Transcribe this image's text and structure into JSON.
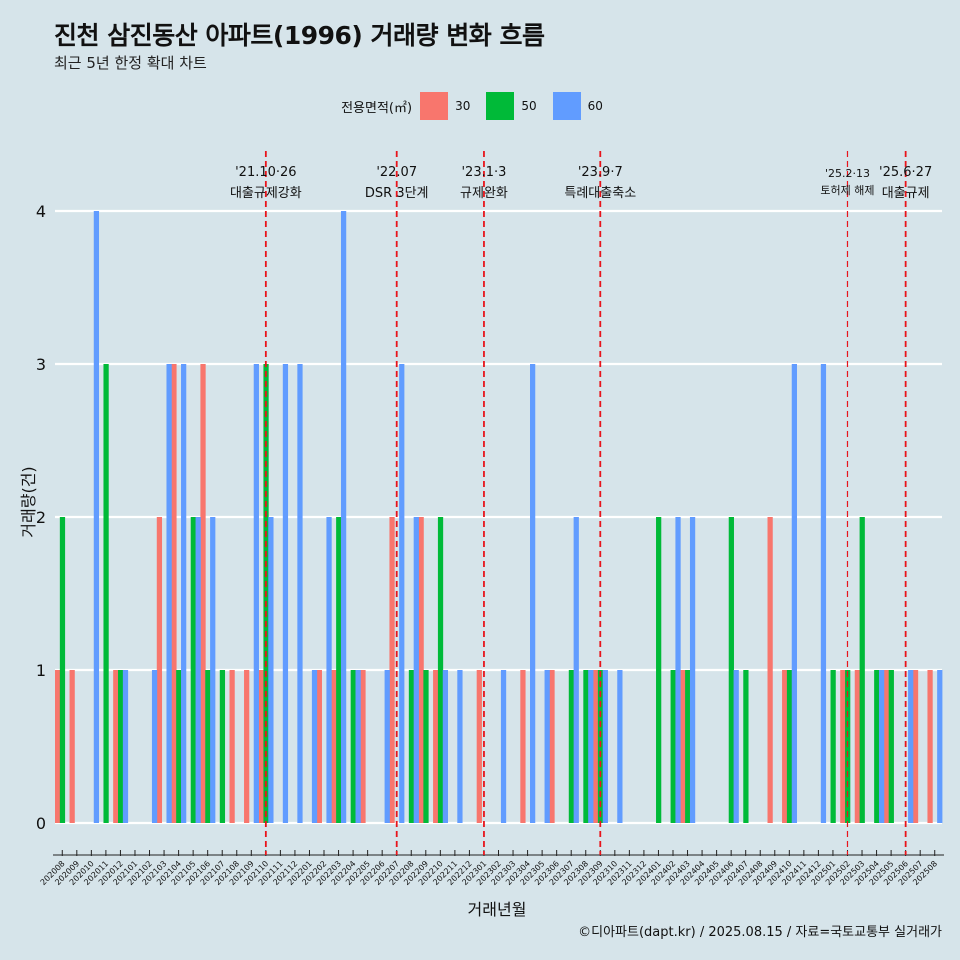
{
  "title": "진천 삼진동산 아파트(1996) 거래량 변화 흐름",
  "subtitle": "최근 5년 한정 확대 차트",
  "legend": {
    "title": "전용면적(㎡)",
    "items": [
      {
        "label": "30",
        "color": "#f8766d"
      },
      {
        "label": "50",
        "color": "#00ba38"
      },
      {
        "label": "60",
        "color": "#619cff"
      }
    ]
  },
  "caption": "©디아파트(dapt.kr) / 2025.08.15 / 자료=국토교통부 실거래가",
  "colors": {
    "background": "#d6e4ea",
    "grid": "#ffffff",
    "event_line": "#e8141b"
  },
  "chart_data": {
    "type": "bar",
    "xlabel": "거래년월",
    "ylabel": "거래량(건)",
    "ylim": [
      0,
      4
    ],
    "yticks": [
      0,
      1,
      2,
      3,
      4
    ],
    "grid": true,
    "legend_position": "top",
    "categories": [
      "202008",
      "202009",
      "202010",
      "202011",
      "202012",
      "202101",
      "202102",
      "202103",
      "202104",
      "202105",
      "202106",
      "202107",
      "202108",
      "202109",
      "202110",
      "202111",
      "202112",
      "202201",
      "202202",
      "202203",
      "202204",
      "202205",
      "202206",
      "202207",
      "202208",
      "202209",
      "202210",
      "202211",
      "202212",
      "202301",
      "202302",
      "202303",
      "202304",
      "202305",
      "202306",
      "202307",
      "202308",
      "202309",
      "202310",
      "202311",
      "202312",
      "202401",
      "202402",
      "202403",
      "202404",
      "202405",
      "202406",
      "202407",
      "202408",
      "202409",
      "202410",
      "202411",
      "202412",
      "202501",
      "202502",
      "202503",
      "202504",
      "202505",
      "202506",
      "202507",
      "202508"
    ],
    "series": [
      {
        "name": "30",
        "values": [
          1,
          1,
          0,
          0,
          1,
          0,
          0,
          2,
          3,
          0,
          3,
          0,
          1,
          1,
          1,
          0,
          0,
          0,
          1,
          1,
          0,
          1,
          0,
          2,
          0,
          2,
          1,
          0,
          0,
          1,
          0,
          0,
          1,
          0,
          1,
          0,
          0,
          1,
          0,
          0,
          0,
          0,
          0,
          1,
          0,
          0,
          0,
          0,
          0,
          2,
          1,
          0,
          0,
          0,
          1,
          1,
          0,
          1,
          0,
          1,
          1
        ]
      },
      {
        "name": "50",
        "values": [
          2,
          0,
          0,
          3,
          1,
          0,
          0,
          0,
          1,
          2,
          1,
          1,
          0,
          0,
          3,
          0,
          0,
          0,
          0,
          2,
          1,
          0,
          0,
          0,
          1,
          1,
          2,
          0,
          0,
          0,
          0,
          0,
          0,
          0,
          0,
          1,
          1,
          1,
          0,
          0,
          0,
          2,
          1,
          1,
          0,
          0,
          2,
          1,
          0,
          0,
          1,
          0,
          0,
          1,
          1,
          2,
          1,
          1,
          0,
          0,
          0
        ]
      },
      {
        "name": "60",
        "values": [
          0,
          0,
          4,
          0,
          1,
          0,
          1,
          3,
          3,
          2,
          2,
          0,
          0,
          3,
          2,
          3,
          3,
          1,
          2,
          4,
          1,
          0,
          1,
          3,
          2,
          0,
          1,
          1,
          0,
          0,
          1,
          0,
          3,
          1,
          0,
          2,
          1,
          1,
          1,
          0,
          0,
          0,
          2,
          2,
          0,
          0,
          1,
          0,
          0,
          0,
          3,
          0,
          3,
          0,
          0,
          0,
          1,
          0,
          1,
          0,
          1
        ]
      }
    ],
    "events": [
      {
        "date": "'21.10·26",
        "label": "대출규제강화",
        "category": "202110"
      },
      {
        "date": "'22.07",
        "label": "DSR 3단계",
        "category": "202207"
      },
      {
        "date": "'23.1·3",
        "label": "규제완화",
        "category": "202301"
      },
      {
        "date": "'23.9·7",
        "label": "특례대출축소",
        "category": "202309"
      },
      {
        "date": "'25.2·13",
        "label": "토허제 해제",
        "category": "202502"
      },
      {
        "date": "'25.6·27",
        "label": "대출규제",
        "category": "202506"
      }
    ]
  }
}
